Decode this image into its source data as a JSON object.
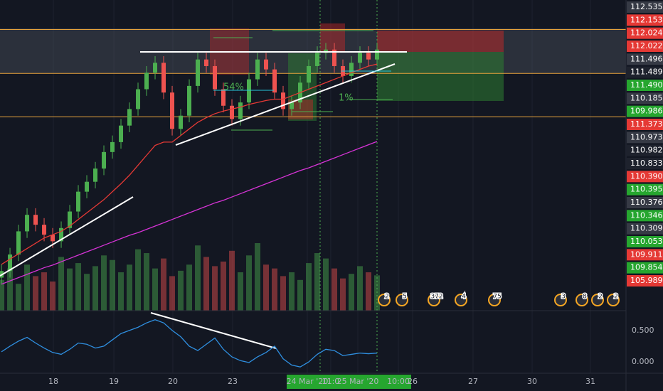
{
  "chart_data": {
    "type": "candlestick",
    "ylim": [
      107.9,
      112.6
    ],
    "xlim": [
      -0.17,
      73.17
    ],
    "xticks": [
      {
        "value": 6.08,
        "label": "18"
      },
      {
        "value": 13.17,
        "label": "19"
      },
      {
        "value": 20.08,
        "label": "20"
      },
      {
        "value": 27.08,
        "label": "23"
      },
      {
        "value": 35.83,
        "label": "24 Mar '20"
      },
      {
        "value": 38.58,
        "label": "11:0"
      },
      {
        "value": 41.75,
        "label": "25 Mar '20"
      },
      {
        "value": 46.5,
        "label": "10:00"
      },
      {
        "value": 48.17,
        "label": "26"
      },
      {
        "value": 55.25,
        "label": "27"
      },
      {
        "value": 62.17,
        "label": "30"
      },
      {
        "value": 69,
        "label": "31"
      }
    ],
    "grid": true,
    "up_color": "#4caf50",
    "down_color": "#ef5350",
    "open": [
      108.4,
      108.5,
      108.75,
      109.1,
      109.35,
      109.2,
      109.05,
      108.95,
      109.15,
      109.4,
      109.7,
      109.85,
      110.05,
      110.3,
      110.45,
      110.7,
      110.95,
      111.25,
      111.5,
      111.65,
      111.2,
      110.65,
      110.85,
      111.3,
      111.7,
      111.6,
      111.25,
      111.0,
      110.8,
      111.05,
      111.4,
      111.7,
      111.55,
      111.2,
      110.95,
      111.05,
      111.35,
      111.6,
      111.8,
      111.85,
      111.6,
      111.45,
      111.65,
      111.8,
      111.7
    ],
    "high": [
      108.6,
      108.85,
      109.2,
      109.45,
      109.45,
      109.3,
      109.15,
      109.25,
      109.5,
      109.8,
      109.95,
      110.15,
      110.4,
      110.55,
      110.8,
      111.05,
      111.35,
      111.6,
      111.75,
      111.75,
      111.3,
      110.95,
      111.4,
      111.8,
      111.8,
      111.7,
      111.35,
      111.1,
      111.15,
      111.5,
      111.8,
      111.8,
      111.65,
      111.3,
      111.15,
      111.45,
      111.7,
      111.9,
      111.95,
      111.95,
      111.7,
      111.75,
      111.9,
      111.9,
      111.95
    ],
    "low": [
      108.3,
      108.4,
      108.65,
      109.0,
      109.1,
      108.95,
      108.85,
      108.85,
      109.05,
      109.3,
      109.6,
      109.75,
      109.95,
      110.2,
      110.35,
      110.6,
      110.85,
      111.15,
      111.4,
      111.1,
      110.55,
      110.55,
      110.75,
      111.2,
      111.5,
      111.15,
      110.9,
      110.7,
      110.7,
      110.95,
      111.3,
      111.45,
      111.1,
      110.85,
      110.85,
      110.95,
      111.25,
      111.5,
      111.7,
      111.5,
      111.35,
      111.35,
      111.55,
      111.6,
      111.6
    ],
    "close": [
      108.5,
      108.75,
      109.1,
      109.35,
      109.2,
      109.05,
      108.95,
      109.15,
      109.4,
      109.7,
      109.85,
      110.05,
      110.3,
      110.45,
      110.7,
      110.95,
      111.25,
      111.5,
      111.65,
      111.2,
      110.65,
      110.85,
      111.3,
      111.7,
      111.6,
      111.25,
      111.0,
      110.8,
      111.05,
      111.4,
      111.7,
      111.55,
      111.2,
      110.95,
      111.05,
      111.35,
      111.6,
      111.8,
      111.85,
      111.6,
      111.45,
      111.65,
      111.8,
      111.7,
      111.85
    ],
    "volume": [
      40,
      55,
      35,
      60,
      45,
      50,
      38,
      70,
      55,
      62,
      48,
      58,
      72,
      66,
      50,
      60,
      80,
      75,
      55,
      68,
      45,
      52,
      60,
      85,
      70,
      58,
      64,
      78,
      50,
      72,
      88,
      60,
      55,
      45,
      50,
      40,
      62,
      75,
      68,
      55,
      42,
      48,
      58,
      50,
      46
    ],
    "moving_averages": [
      {
        "color": "#e53935",
        "values": [
          108.6,
          108.68,
          108.76,
          108.84,
          108.92,
          109.0,
          109.05,
          109.1,
          109.18,
          109.28,
          109.38,
          109.48,
          109.58,
          109.7,
          109.82,
          109.95,
          110.1,
          110.25,
          110.4,
          110.45,
          110.45,
          110.55,
          110.65,
          110.75,
          110.82,
          110.88,
          110.92,
          110.95,
          110.98,
          111.02,
          111.05,
          111.08,
          111.1,
          111.1,
          111.15,
          111.2,
          111.25,
          111.3,
          111.35,
          111.4,
          111.45,
          111.5,
          111.55,
          111.6,
          111.63
        ]
      },
      {
        "color": "#d633d6",
        "values": [
          108.3,
          108.35,
          108.4,
          108.45,
          108.5,
          108.55,
          108.59,
          108.64,
          108.69,
          108.74,
          108.79,
          108.84,
          108.89,
          108.94,
          108.99,
          109.04,
          109.08,
          109.13,
          109.18,
          109.23,
          109.28,
          109.33,
          109.38,
          109.43,
          109.48,
          109.53,
          109.57,
          109.62,
          109.67,
          109.72,
          109.77,
          109.82,
          109.87,
          109.92,
          109.97,
          110.02,
          110.06,
          110.11,
          110.16,
          110.21,
          110.26,
          110.31,
          110.36,
          110.41,
          110.46
        ]
      }
    ],
    "levels": [
      112.153,
      111.489,
      110.833
    ],
    "level_color": "#e6a23c",
    "price_labels": [
      {
        "label": "112.535",
        "bg": "#363a45"
      },
      {
        "label": "112.153",
        "bg": "#e53935"
      },
      {
        "label": "112.024",
        "bg": "#e53935"
      },
      {
        "label": "112.022",
        "bg": "#e53935"
      },
      {
        "label": "111.496",
        "bg": "#363a45"
      },
      {
        "label": "111.489",
        "bg": "#1e222d"
      },
      {
        "label": "111.490",
        "bg": "#26a62f"
      },
      {
        "label": "110.185",
        "bg": "#363a45"
      },
      {
        "label": "109.986",
        "bg": "#26a62f"
      },
      {
        "label": "111.373",
        "bg": "#e53935"
      },
      {
        "label": "110.973",
        "bg": "#363a45"
      },
      {
        "label": "110.982",
        "bg": "#1e222d"
      },
      {
        "label": "110.833",
        "bg": "#1e222d"
      },
      {
        "label": "110.390",
        "bg": "#e53935"
      },
      {
        "label": "110.395",
        "bg": "#26a62f"
      },
      {
        "label": "110.376",
        "bg": "#363a45"
      },
      {
        "label": "110.346",
        "bg": "#26a62f"
      },
      {
        "label": "110.309",
        "bg": "#363a45"
      },
      {
        "label": "110.053",
        "bg": "#26a62f"
      },
      {
        "label": "109.911",
        "bg": "#e53935"
      },
      {
        "label": "109.854",
        "bg": "#26a62f"
      },
      {
        "label": "105.989",
        "bg": "#e53935"
      }
    ],
    "annotations": [
      "54%",
      "1%"
    ],
    "events": [
      "2",
      "5",
      "372",
      "4",
      "75",
      "3",
      "8",
      "2",
      "2"
    ],
    "oscillator": {
      "color": "#2f8fe0",
      "ylim": [
        -0.18,
        0.78
      ],
      "yticks": [
        {
          "value": 0.5,
          "label": "0.500"
        },
        {
          "value": 0,
          "label": "0.000"
        }
      ],
      "values": [
        0.16,
        0.25,
        0.33,
        0.39,
        0.3,
        0.22,
        0.15,
        0.12,
        0.2,
        0.3,
        0.28,
        0.22,
        0.25,
        0.35,
        0.45,
        0.5,
        0.55,
        0.62,
        0.67,
        0.62,
        0.5,
        0.4,
        0.25,
        0.18,
        0.28,
        0.38,
        0.2,
        0.08,
        0.02,
        -0.01,
        0.08,
        0.15,
        0.25,
        0.05,
        -0.05,
        -0.08,
        0.0,
        0.12,
        0.2,
        0.18,
        0.1,
        0.12,
        0.14,
        0.13,
        0.14
      ]
    }
  }
}
